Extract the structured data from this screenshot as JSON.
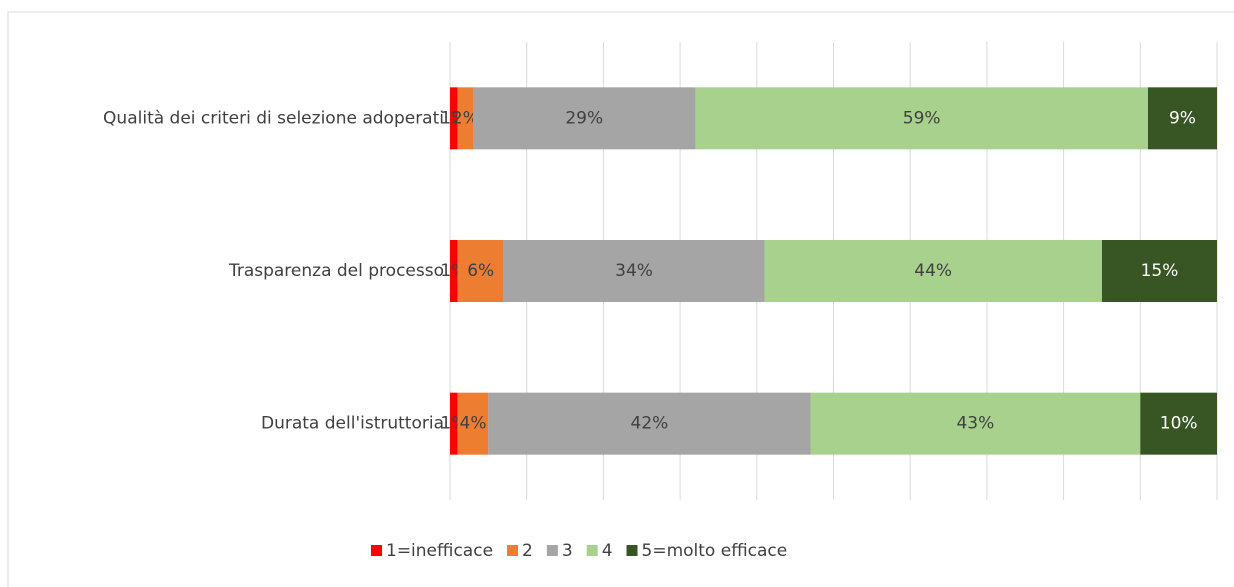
{
  "chart_data": {
    "type": "stacked_bar_horizontal",
    "categories": [
      "Qualità dei criteri di selezione adoperati",
      "Trasparenza del processo",
      "Durata dell'istruttoria"
    ],
    "series": [
      {
        "name": "1=inefficace",
        "color": "#ff0000",
        "values": [
          1,
          1,
          1
        ],
        "value_labels": [
          "1%",
          "1%",
          "1%"
        ]
      },
      {
        "name": "2",
        "color": "#ed7d31",
        "values": [
          2,
          6,
          4
        ],
        "value_labels": [
          "2%",
          "6%",
          "4%"
        ]
      },
      {
        "name": "3",
        "color": "#a5a5a5",
        "values": [
          29,
          34,
          42
        ],
        "value_labels": [
          "29%",
          "34%",
          "42%"
        ]
      },
      {
        "name": "4",
        "color": "#a9d18e",
        "values": [
          59,
          44,
          43
        ],
        "value_labels": [
          "59%",
          "44%",
          "43%"
        ]
      },
      {
        "name": "5=molto efficace",
        "color": "#375623",
        "values": [
          9,
          15,
          10
        ],
        "value_labels": [
          "9%",
          "15%",
          "10%"
        ]
      }
    ],
    "xlim": [
      0,
      100
    ],
    "xticks": [
      0,
      10,
      20,
      30,
      40,
      50,
      60,
      70,
      80,
      90,
      100
    ],
    "grid": true,
    "legend": "bottom"
  }
}
